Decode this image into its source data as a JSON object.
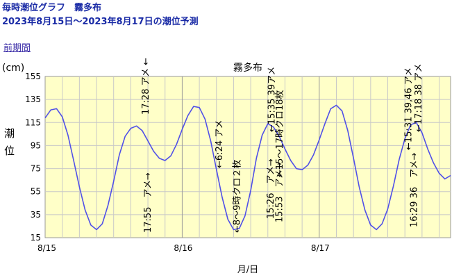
{
  "header": {
    "title": "毎時潮位グラフ　霧多布",
    "subtitle": "2023年8月15日～2023年8月17日の潮位予測",
    "prev_link": "前期間"
  },
  "chart_data": {
    "type": "line",
    "title": "霧多布",
    "unit": "(cm)",
    "ylabel": "潮位",
    "xlabel": "月/日",
    "ylim": [
      15,
      155
    ],
    "yticks": [
      15,
      35,
      55,
      75,
      95,
      115,
      135,
      155
    ],
    "xticks": [
      {
        "hour": 0,
        "label": "8/15"
      },
      {
        "hour": 24,
        "label": "8/16"
      },
      {
        "hour": 48,
        "label": "8/17"
      }
    ],
    "x_range_hours": [
      0,
      71
    ],
    "x_unit": "hours from 8/15 0:00",
    "grid": true,
    "series": [
      {
        "color": "#5050e8",
        "x": [
          0,
          1,
          2,
          3,
          4,
          5,
          6,
          7,
          8,
          9,
          10,
          11,
          12,
          13,
          14,
          15,
          16,
          17,
          18,
          19,
          20,
          21,
          22,
          23,
          24,
          25,
          26,
          27,
          28,
          29,
          30,
          31,
          32,
          33,
          34,
          35,
          36,
          37,
          38,
          39,
          40,
          41,
          42,
          43,
          44,
          45,
          46,
          47,
          48,
          49,
          50,
          51,
          52,
          53,
          54,
          55,
          56,
          57,
          58,
          59,
          60,
          61,
          62,
          63,
          64,
          65,
          66,
          67,
          68,
          69,
          70,
          71
        ],
        "values": [
          119,
          126,
          127,
          120,
          104,
          82,
          59,
          39,
          26,
          22,
          27,
          43,
          64,
          87,
          103,
          110,
          112,
          108,
          99,
          90,
          84,
          82,
          86,
          96,
          109,
          121,
          129,
          128,
          118,
          99,
          74,
          50,
          31,
          22,
          23,
          34,
          56,
          84,
          104,
          114,
          111,
          103,
          92,
          82,
          75,
          74,
          78,
          87,
          100,
          114,
          127,
          130,
          125,
          108,
          84,
          59,
          39,
          26,
          22,
          27,
          40,
          60,
          83,
          101,
          113,
          115,
          106,
          92,
          80,
          71,
          66,
          69
        ]
      }
    ],
    "annotations": [
      {
        "text": "17:28 アメ ←",
        "hour": 17.5
      },
      {
        "text": "17:55　アメ→",
        "hour": 17.9
      },
      {
        "text": "←6:24 アメ",
        "hour": 30.4
      },
      {
        "text": "←8～9時クロ２枚",
        "hour": 33.5
      },
      {
        "text": "←15:35 39アメ",
        "hour": 39.6
      },
      {
        "text": "←15～17時クロ18枚",
        "hour": 41.0
      },
      {
        "text": "15:26　アメ→",
        "hour": 39.4
      },
      {
        "text": "15:53　アメ→",
        "hour": 40.9
      },
      {
        "text": "←15:31 39,46 アメ",
        "hour": 63.5
      },
      {
        "text": "←17:18 38 アメ",
        "hour": 65.3
      },
      {
        "text": "16:29 36　アメ→",
        "hour": 64.5
      }
    ]
  },
  "colors": {
    "plot_bg": "#ffffc8",
    "line": "#5050e8",
    "grid": "#c8c8c8",
    "header_text": "#1a2ba6",
    "link": "#3d2fa8"
  }
}
